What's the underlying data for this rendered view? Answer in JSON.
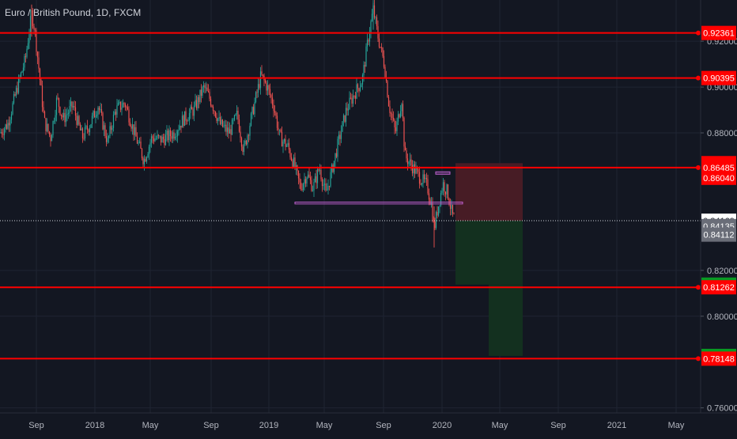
{
  "symbol_title": "Euro / British Pound, 1D, FXCM",
  "colors": {
    "background": "#131722",
    "axis_bg": "#131722",
    "grid": "#1f2433",
    "axis_text": "#b2b5be",
    "level_line": "#ff0000",
    "bull_candle": "#26a69a",
    "bear_candle": "#ef5350",
    "stop_zone": "#4a1c26",
    "target_zone": "#13301f",
    "marker_box": "#c060d0",
    "last_price_tag_bg": "#ffffff",
    "last_price_tag_text": "#131722",
    "grey_tag": "#6a6d78",
    "green_tag": "#089923",
    "red_tag": "#ff0000"
  },
  "chart_data": {
    "type": "candlestick",
    "x_labels": [
      "Sep",
      "2018",
      "May",
      "Sep",
      "2019",
      "May",
      "Sep",
      "2020",
      "May",
      "Sep",
      "2021",
      "May"
    ],
    "y_ticks": [
      0.92,
      0.9,
      0.88,
      0.82,
      0.8,
      0.76
    ],
    "y_tick_labels": [
      "0.92000",
      "0.90000",
      "0.88000",
      "0.82000",
      "0.80000",
      "0.76000"
    ],
    "ylim": [
      0.7578,
      0.938
    ],
    "price_range_shown": {
      "low": 0.83,
      "high": 0.9367
    },
    "horizontal_levels": [
      0.92361,
      0.90395,
      0.86485,
      0.81262,
      0.78148
    ],
    "price_tags": [
      {
        "label": "0.92361",
        "value": 0.92361,
        "style": "red"
      },
      {
        "label": "0.90395",
        "value": 0.90395,
        "style": "red"
      },
      {
        "label": "0.86485",
        "value": 0.8668,
        "style": "red"
      },
      {
        "label": "0.86485",
        "value": 0.86485,
        "style": "red"
      },
      {
        "label": "0.86040",
        "value": 0.8604,
        "style": "red"
      },
      {
        "label": "0.84169",
        "value": 0.84169,
        "style": "white"
      },
      {
        "label": "0.84135",
        "value": 0.83935,
        "style": "grey"
      },
      {
        "label": "0.84112",
        "value": 0.8356,
        "style": "grey"
      },
      {
        "label": "0.81379",
        "value": 0.81379,
        "style": "green"
      },
      {
        "label": "0.81262",
        "value": 0.81262,
        "style": "red"
      },
      {
        "label": "0.78267",
        "value": 0.78267,
        "style": "green"
      },
      {
        "label": "0.78148",
        "value": 0.78148,
        "style": "red"
      }
    ],
    "last_price": 0.84169,
    "position": {
      "entry": 0.84169,
      "stop": 0.8668,
      "target1": 0.81379,
      "target2": 0.78267
    },
    "support_box": {
      "low": 0.849,
      "high": 0.8498
    },
    "resistance_box": {
      "low": 0.862,
      "high": 0.863
    }
  }
}
